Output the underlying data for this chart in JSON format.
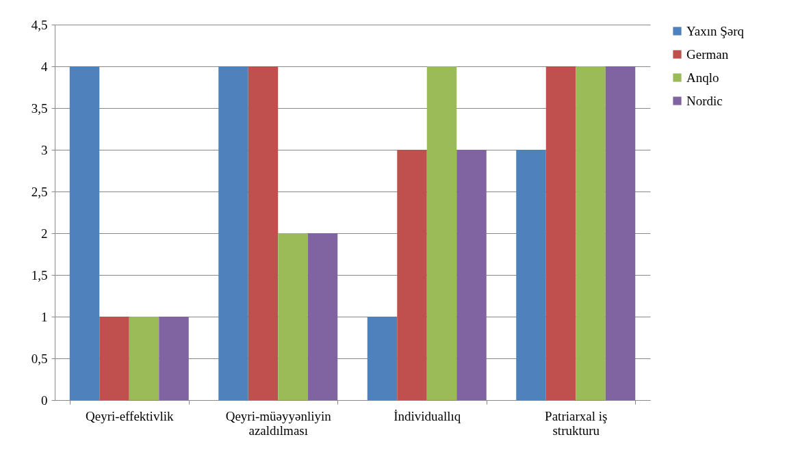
{
  "chart_data": {
    "type": "bar",
    "categories": [
      "Qeyri-effektivlik",
      "Qeyri-müəyyənliyin azaldılması",
      "İndividuallıq",
      "Patriarxal iş strukturu"
    ],
    "series": [
      {
        "name": "Yaxın Şərq",
        "color": "#4f81bd",
        "values": [
          4,
          4,
          1,
          3
        ]
      },
      {
        "name": "German",
        "color": "#c0504d",
        "values": [
          1,
          4,
          3,
          4
        ]
      },
      {
        "name": "Anqlo",
        "color": "#9bbb59",
        "values": [
          1,
          2,
          4,
          4
        ]
      },
      {
        "name": "Nordic",
        "color": "#8064a2",
        "values": [
          1,
          2,
          3,
          4
        ]
      }
    ],
    "ylim": [
      0,
      4.5
    ],
    "yticks": [
      0,
      {
        "value": 0.5,
        "label": "0,5"
      },
      1,
      {
        "value": 1.5,
        "label": "1,5"
      },
      2,
      {
        "value": 2.5,
        "label": "2,5"
      },
      3,
      {
        "value": 3.5,
        "label": "3,5"
      },
      4,
      {
        "value": 4.5,
        "label": "4,5"
      }
    ],
    "grid": "y",
    "legend": "right"
  }
}
